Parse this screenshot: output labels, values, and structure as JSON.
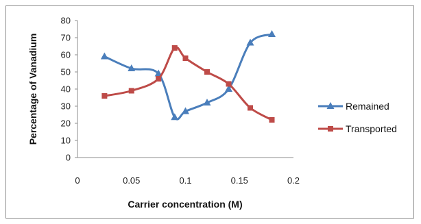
{
  "chart_data": {
    "type": "line",
    "title": "",
    "xlabel": "Carrier concentration (M)",
    "ylabel": "Percentage of Vanadium",
    "xlim": [
      0,
      0.2
    ],
    "ylim": [
      0,
      80
    ],
    "x_ticks": [
      "0",
      "0.05",
      "0.1",
      "0.15",
      "0.2"
    ],
    "y_ticks": [
      "0",
      "10",
      "20",
      "30",
      "40",
      "50",
      "60",
      "70",
      "80"
    ],
    "grid": false,
    "legend_position": "right",
    "series": [
      {
        "name": "Remained",
        "color": "#4a7ebb",
        "marker": "triangle",
        "x": [
          0.025,
          0.05,
          0.075,
          0.09,
          0.1,
          0.12,
          0.14,
          0.16,
          0.18
        ],
        "y": [
          59,
          52,
          49,
          23.5,
          27,
          32,
          40,
          67,
          72
        ]
      },
      {
        "name": "Transported",
        "color": "#be4b48",
        "marker": "square",
        "x": [
          0.025,
          0.05,
          0.075,
          0.09,
          0.1,
          0.12,
          0.14,
          0.16,
          0.18
        ],
        "y": [
          36,
          39,
          46,
          64,
          58,
          50,
          43,
          29,
          22
        ]
      }
    ]
  }
}
